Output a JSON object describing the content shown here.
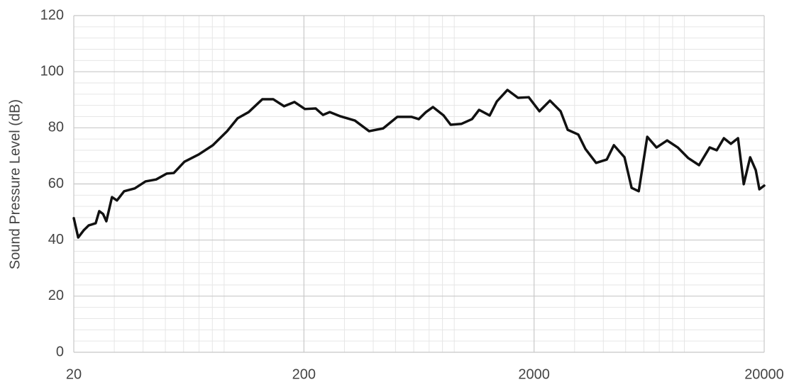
{
  "chart_data": {
    "type": "line",
    "y_label": "Sound Pressure Level (dB)",
    "x_log_scale": true,
    "grid": true,
    "xlim": [
      20,
      20000
    ],
    "xticks": [
      20,
      200,
      2000,
      20000
    ],
    "x_minor_ticks": [
      30,
      40,
      50,
      60,
      70,
      80,
      90,
      300,
      400,
      500,
      600,
      700,
      800,
      900,
      3000,
      4000,
      5000,
      6000,
      7000,
      8000,
      9000
    ],
    "ylim": [
      0,
      120
    ],
    "yticks": [
      0,
      20,
      40,
      60,
      80,
      100,
      120
    ],
    "y_minor_ticks": [
      4,
      8,
      12,
      16,
      24,
      28,
      32,
      36,
      44,
      48,
      52,
      56,
      64,
      68,
      72,
      76,
      84,
      88,
      92,
      96,
      104,
      108,
      112,
      116
    ],
    "series": [
      {
        "color": "#111111",
        "x": [
          20,
          20.9,
          22.1,
          23.2,
          24.9,
          25.8,
          26.8,
          27.7,
          29.3,
          30.8,
          33.1,
          36.8,
          41,
          45.6,
          50.7,
          54.4,
          60.5,
          69.8,
          80.4,
          92.7,
          103,
          115,
          132,
          147,
          164,
          182,
          202,
          225,
          242,
          259,
          288,
          333,
          384,
          442,
          509,
          588,
          631,
          678,
          727,
          809,
          868,
          966,
          1075,
          1154,
          1283,
          1378,
          1532,
          1703,
          1896,
          2110,
          2345,
          2608,
          2800,
          3113,
          3342,
          3720,
          4140,
          4445,
          4943,
          5308,
          5700,
          6208,
          6810,
          7570,
          8420,
          9360,
          10420,
          11590,
          12440,
          13360,
          14330,
          15390,
          16300,
          17380,
          18380,
          19060,
          20000
        ],
        "values": [
          47.8,
          40.9,
          43.5,
          45.2,
          46,
          50.3,
          49.3,
          46.7,
          55.3,
          54.1,
          57.4,
          58.4,
          60.9,
          61.6,
          63.7,
          63.9,
          67.9,
          70.5,
          73.8,
          78.8,
          83.4,
          85.6,
          90.2,
          90.2,
          87.7,
          89.2,
          86.7,
          86.9,
          84.6,
          85.6,
          84.1,
          82.6,
          78.8,
          79.8,
          83.9,
          83.9,
          83.1,
          85.6,
          87.4,
          84.4,
          81.1,
          81.4,
          83.1,
          86.4,
          84.4,
          89.4,
          93.5,
          90.7,
          90.9,
          85.9,
          89.7,
          85.9,
          79.3,
          77.6,
          72.5,
          67.5,
          68.7,
          73.8,
          69.5,
          58.6,
          57.4,
          76.8,
          73,
          75.5,
          73,
          69.2,
          66.7,
          73,
          72,
          76.3,
          74.3,
          76.3,
          59.9,
          69.5,
          64.9,
          58.1,
          59.4
        ]
      }
    ]
  }
}
